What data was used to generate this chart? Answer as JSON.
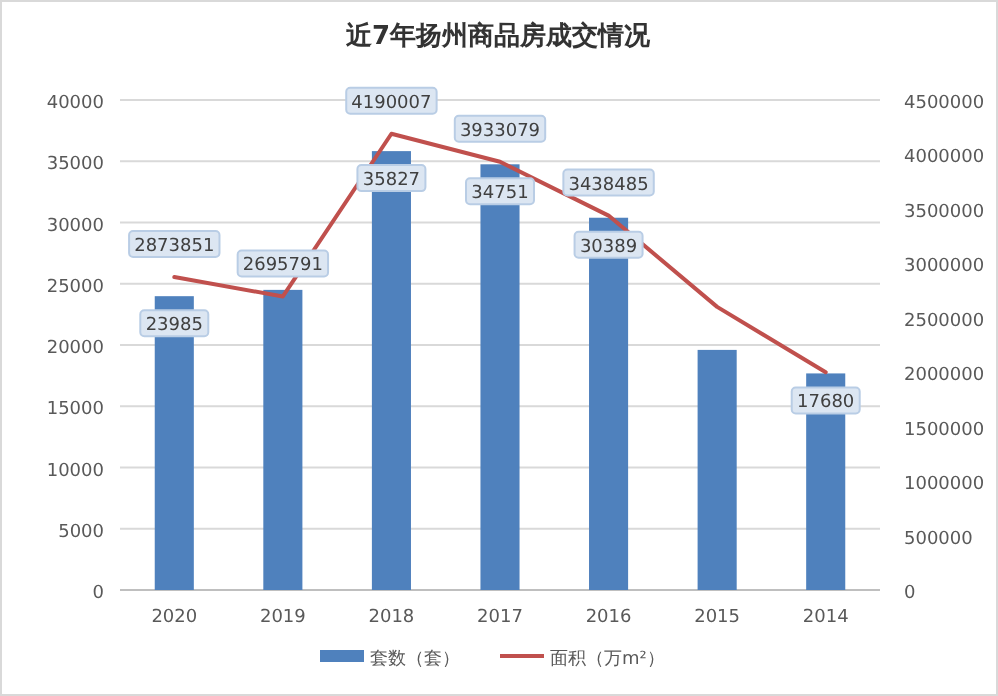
{
  "chart_data": {
    "type": "bar",
    "title": "近7年扬州商品房成交情况",
    "categories": [
      "2020",
      "2019",
      "2018",
      "2017",
      "2016",
      "2015",
      "2014"
    ],
    "series": [
      {
        "name": "套数（套）",
        "color": "#4f81bd",
        "values": [
          23985,
          24500,
          35827,
          34751,
          30389,
          19600,
          17680
        ],
        "value_labels": [
          "23985",
          null,
          "35827",
          "34751",
          "30389",
          null,
          "17680"
        ]
      },
      {
        "name": "面积（万m²）",
        "type": "line",
        "axis": "y2",
        "color": "#c0504d",
        "values": [
          2873851,
          2695791,
          4190007,
          3933079,
          3438485,
          2600000,
          2000000
        ],
        "value_labels": [
          "2873851",
          "2695791",
          "4190007",
          "3933079",
          "3438485",
          null,
          null
        ]
      }
    ],
    "ylim": [
      0,
      40000
    ],
    "yticks": [
      0,
      5000,
      10000,
      15000,
      20000,
      25000,
      30000,
      35000,
      40000
    ],
    "y2lim": [
      0,
      4500000
    ],
    "y2ticks": [
      0,
      500000,
      1000000,
      1500000,
      2000000,
      2500000,
      3000000,
      3500000,
      4000000,
      4500000
    ],
    "grid": "y",
    "legend": "bottom",
    "marker": "none",
    "line_style": "solid"
  }
}
